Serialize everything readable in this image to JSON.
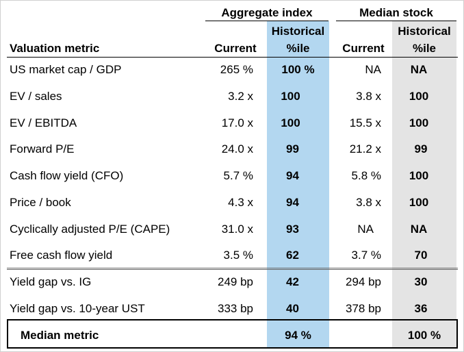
{
  "headers": {
    "group_aggregate": "Aggregate index",
    "group_median": "Median stock",
    "metric": "Valuation metric",
    "agg_current": "Current",
    "agg_pct_line1": "Historical",
    "agg_pct_line2": "%ile",
    "med_current": "Current",
    "med_pct_line1": "Historical",
    "med_pct_line2": "%ile"
  },
  "rows": [
    {
      "metric": "US market cap / GDP",
      "agg_current": "265 %",
      "agg_pct": "100 %",
      "med_current": "NA",
      "med_pct": "NA"
    },
    {
      "metric": "EV / sales",
      "agg_current": "3.2 x",
      "agg_pct": "100",
      "med_current": "3.8 x",
      "med_pct": "100"
    },
    {
      "metric": "EV / EBITDA",
      "agg_current": "17.0 x",
      "agg_pct": "100",
      "med_current": "15.5 x",
      "med_pct": "100"
    },
    {
      "metric": "Forward P/E",
      "agg_current": "24.0 x",
      "agg_pct": "99",
      "med_current": "21.2 x",
      "med_pct": "99"
    },
    {
      "metric": "Cash flow yield (CFO)",
      "agg_current": "5.7 %",
      "agg_pct": "94",
      "med_current": "5.8 %",
      "med_pct": "100"
    },
    {
      "metric": "Price / book",
      "agg_current": "4.3 x",
      "agg_pct": "94",
      "med_current": "3.8 x",
      "med_pct": "100"
    },
    {
      "metric": "Cyclically adjusted P/E (CAPE)",
      "agg_current": "31.0 x",
      "agg_pct": "93",
      "med_current": "NA",
      "med_pct": "NA"
    },
    {
      "metric": "Free cash flow yield",
      "agg_current": "3.5 %",
      "agg_pct": "62",
      "med_current": "3.7 %",
      "med_pct": "70"
    },
    {
      "metric": "Yield gap vs. IG",
      "agg_current": "249 bp",
      "agg_pct": "42",
      "med_current": "294 bp",
      "med_pct": "30"
    },
    {
      "metric": "Yield gap vs. 10-year UST",
      "agg_current": "333 bp",
      "agg_pct": "40",
      "med_current": "378 bp",
      "med_pct": "36"
    }
  ],
  "summary": {
    "metric": "Median metric",
    "agg_pct": "94 %",
    "med_pct": "100 %"
  },
  "colors": {
    "aggregate_band": "#b3d7f0",
    "median_band": "#e4e4e4"
  }
}
